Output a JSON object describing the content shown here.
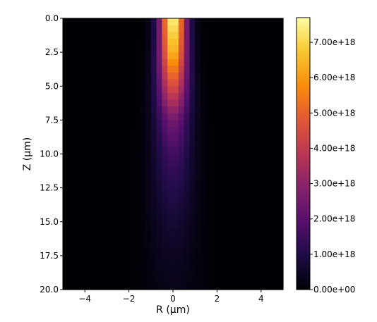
{
  "chart_data": {
    "type": "heatmap",
    "xlabel": "R (μm)",
    "ylabel": "Z (μm)",
    "xlim": [
      -5,
      5
    ],
    "ylim": [
      20,
      0
    ],
    "y_inverted": true,
    "x_ticks": [
      {
        "value": -4,
        "label": "−4"
      },
      {
        "value": -2,
        "label": "−2"
      },
      {
        "value": 0,
        "label": "0"
      },
      {
        "value": 2,
        "label": "2"
      },
      {
        "value": 4,
        "label": "4"
      }
    ],
    "y_ticks": [
      {
        "value": 0.0,
        "label": "0.0"
      },
      {
        "value": 2.5,
        "label": "2.5"
      },
      {
        "value": 5.0,
        "label": "5.0"
      },
      {
        "value": 7.5,
        "label": "7.5"
      },
      {
        "value": 10.0,
        "label": "10.0"
      },
      {
        "value": 12.5,
        "label": "12.5"
      },
      {
        "value": 15.0,
        "label": "15.0"
      },
      {
        "value": 17.5,
        "label": "17.5"
      },
      {
        "value": 20.0,
        "label": "20.0"
      }
    ],
    "colorbar": {
      "colormap": "inferno",
      "min": 0,
      "max": 7.7e+18,
      "ticks": [
        {
          "value": 0,
          "label": "0.00e+00"
        },
        {
          "value": 1e+18,
          "label": "1.00e+18"
        },
        {
          "value": 2e+18,
          "label": "2.00e+18"
        },
        {
          "value": 3e+18,
          "label": "3.00e+18"
        },
        {
          "value": 4e+18,
          "label": "4.00e+18"
        },
        {
          "value": 5e+18,
          "label": "5.00e+18"
        },
        {
          "value": 6e+18,
          "label": "6.00e+18"
        },
        {
          "value": 7e+18,
          "label": "7.00e+18"
        }
      ]
    },
    "field_profile": {
      "axial": [
        {
          "z": 0,
          "peak": 7.7e+18,
          "width": 0.42
        },
        {
          "z": 2.5,
          "peak": 6.6e+18,
          "width": 0.45
        },
        {
          "z": 5,
          "peak": 4.6e+18,
          "width": 0.5
        },
        {
          "z": 7.5,
          "peak": 2.5e+18,
          "width": 0.56
        },
        {
          "z": 10,
          "peak": 1.6e+18,
          "width": 0.62
        },
        {
          "z": 12.5,
          "peak": 1.1e+18,
          "width": 0.68
        },
        {
          "z": 15,
          "peak": 7e+17,
          "width": 0.74
        },
        {
          "z": 17.5,
          "peak": 4.5e+17,
          "width": 0.8
        },
        {
          "z": 20,
          "peak": 3e+17,
          "width": 0.86
        }
      ]
    }
  }
}
